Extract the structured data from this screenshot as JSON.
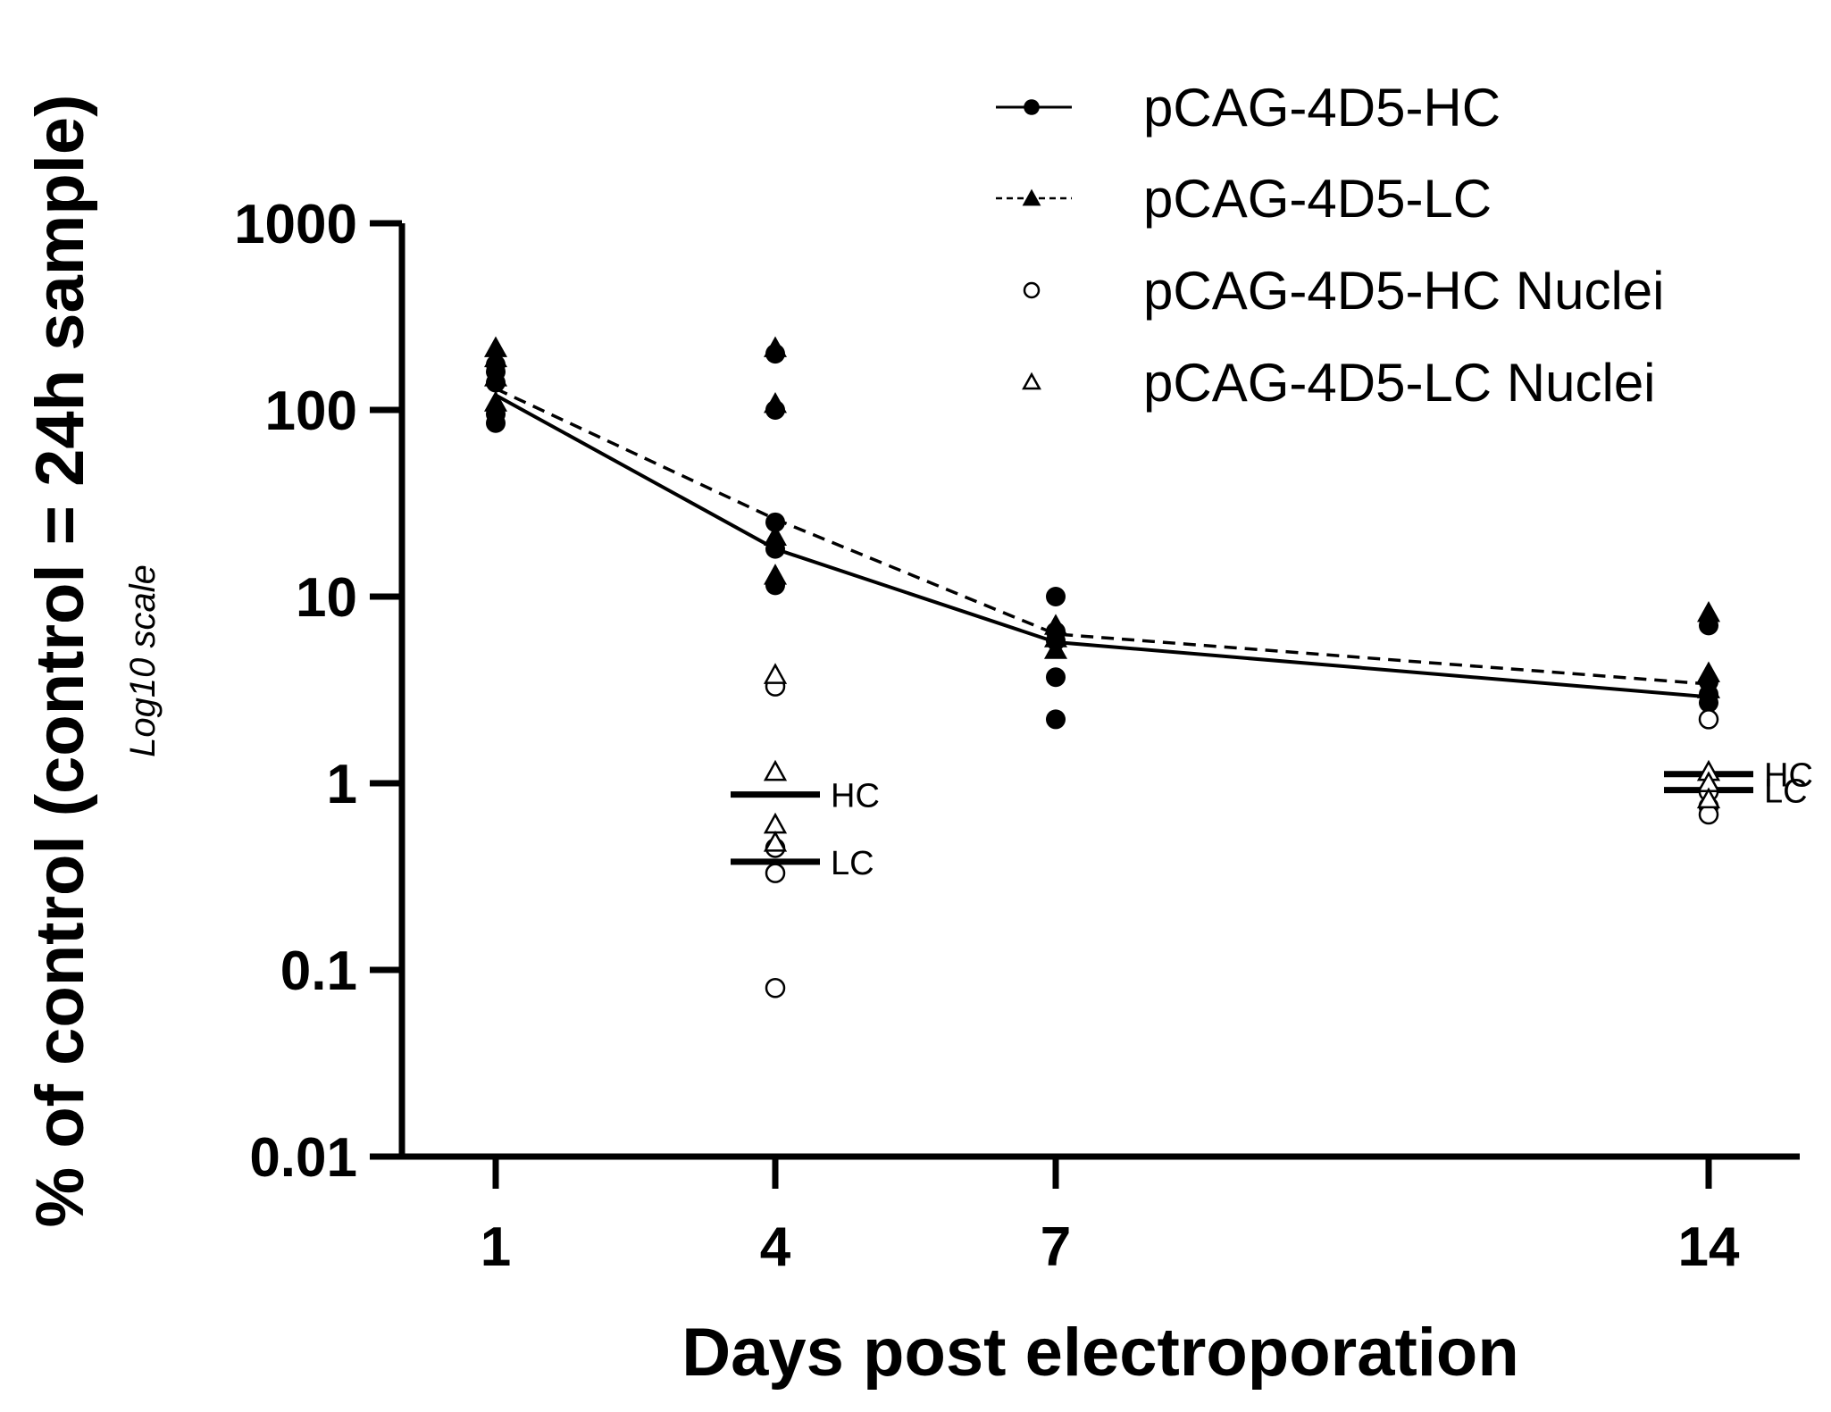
{
  "chart_data": {
    "type": "scatter",
    "title": "",
    "xlabel": "Days post electroporation",
    "ylabel": "% of control (control = 24h sample)",
    "ylabel_note": "Log10 scale",
    "y_scale": "log10",
    "ylim": [
      0.01,
      1000
    ],
    "y_ticks": [
      1000,
      100,
      10,
      1,
      0.1,
      0.01
    ],
    "y_tick_labels": [
      "1000",
      "100",
      "10",
      "1",
      "0.1",
      "0.01"
    ],
    "x_ticks": [
      1,
      4,
      7,
      14
    ],
    "x_tick_labels": [
      "1",
      "4",
      "7",
      "14"
    ],
    "xlim": [
      0,
      15
    ],
    "grid": false,
    "legend_position": "top-right",
    "series": [
      {
        "name": "pCAG-4D5-HC",
        "marker": "filled-circle",
        "line": "solid",
        "mean_line": [
          {
            "x": 1,
            "y": 120
          },
          {
            "x": 4,
            "y": 18
          },
          {
            "x": 7,
            "y": 5.7
          },
          {
            "x": 14,
            "y": 2.9
          }
        ],
        "points": [
          {
            "x": 1,
            "y": 85
          },
          {
            "x": 1,
            "y": 95
          },
          {
            "x": 1,
            "y": 140
          },
          {
            "x": 1,
            "y": 160
          },
          {
            "x": 1,
            "y": 175
          },
          {
            "x": 4,
            "y": 200
          },
          {
            "x": 4,
            "y": 100
          },
          {
            "x": 4,
            "y": 25
          },
          {
            "x": 4,
            "y": 18
          },
          {
            "x": 4,
            "y": 11.5
          },
          {
            "x": 7,
            "y": 10
          },
          {
            "x": 7,
            "y": 6.5
          },
          {
            "x": 7,
            "y": 5.8
          },
          {
            "x": 7,
            "y": 3.7
          },
          {
            "x": 7,
            "y": 2.2
          },
          {
            "x": 14,
            "y": 7
          },
          {
            "x": 14,
            "y": 3.5
          },
          {
            "x": 14,
            "y": 3
          },
          {
            "x": 14,
            "y": 2.7
          }
        ]
      },
      {
        "name": "pCAG-4D5-LC",
        "marker": "filled-triangle",
        "line": "dashed",
        "mean_line": [
          {
            "x": 1,
            "y": 130
          },
          {
            "x": 4,
            "y": 26
          },
          {
            "x": 7,
            "y": 6.3
          },
          {
            "x": 14,
            "y": 3.4
          }
        ],
        "points": [
          {
            "x": 1,
            "y": 110
          },
          {
            "x": 1,
            "y": 150
          },
          {
            "x": 1,
            "y": 190
          },
          {
            "x": 1,
            "y": 215
          },
          {
            "x": 4,
            "y": 215
          },
          {
            "x": 4,
            "y": 108
          },
          {
            "x": 4,
            "y": 21
          },
          {
            "x": 4,
            "y": 13
          },
          {
            "x": 7,
            "y": 7
          },
          {
            "x": 7,
            "y": 6
          },
          {
            "x": 7,
            "y": 5.2
          },
          {
            "x": 14,
            "y": 8.2
          },
          {
            "x": 14,
            "y": 3.9
          },
          {
            "x": 14,
            "y": 3.2
          }
        ]
      },
      {
        "name": "pCAG-4D5-HC Nuclei",
        "marker": "open-circle",
        "points": [
          {
            "x": 4,
            "y": 3.3
          },
          {
            "x": 4,
            "y": 0.45
          },
          {
            "x": 4,
            "y": 0.33
          },
          {
            "x": 4,
            "y": 0.08
          },
          {
            "x": 14,
            "y": 2.2
          },
          {
            "x": 14,
            "y": 0.9
          },
          {
            "x": 14,
            "y": 0.75
          },
          {
            "x": 14,
            "y": 0.68
          }
        ],
        "median": [
          {
            "x": 4,
            "y": 0.87,
            "label": "HC"
          },
          {
            "x": 14,
            "y": 1.12,
            "label": "HC"
          }
        ]
      },
      {
        "name": "pCAG-4D5-LC Nuclei",
        "marker": "open-triangle",
        "points": [
          {
            "x": 4,
            "y": 3.8
          },
          {
            "x": 4,
            "y": 1.15
          },
          {
            "x": 4,
            "y": 0.6
          },
          {
            "x": 4,
            "y": 0.48
          },
          {
            "x": 14,
            "y": 1.15
          },
          {
            "x": 14,
            "y": 1.0
          },
          {
            "x": 14,
            "y": 0.82
          }
        ],
        "median": [
          {
            "x": 4,
            "y": 0.38,
            "label": "LC"
          },
          {
            "x": 14,
            "y": 0.92,
            "label": "LC"
          }
        ]
      }
    ]
  }
}
